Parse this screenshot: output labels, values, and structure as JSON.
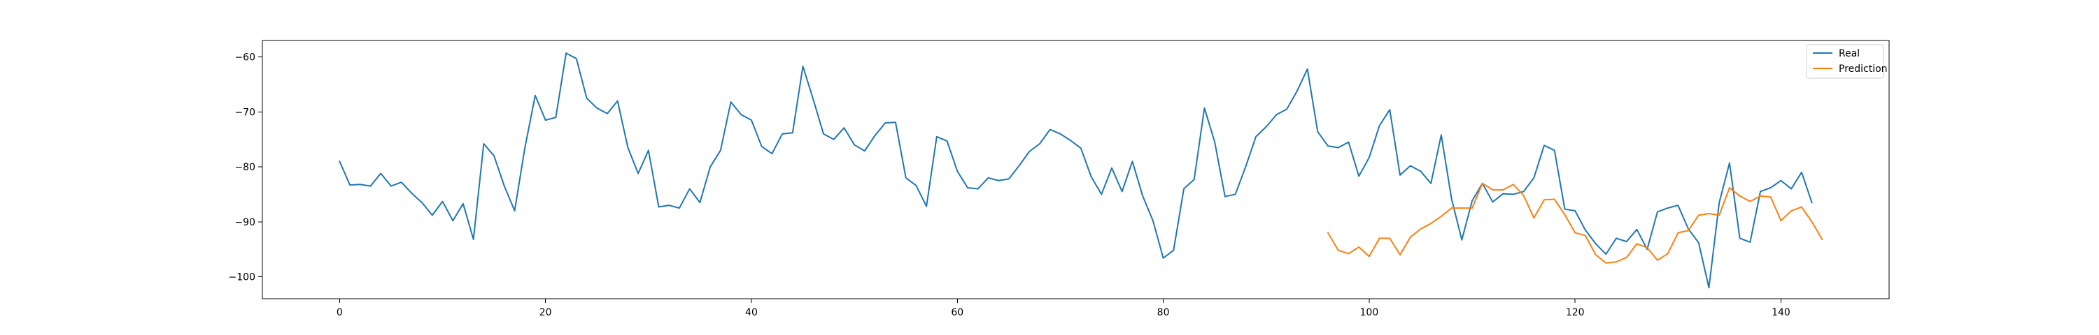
{
  "chart_data": {
    "type": "line",
    "xlim": [
      -7.5,
      150.5
    ],
    "ylim": [
      -104,
      -57
    ],
    "x_ticks": [
      0,
      20,
      40,
      60,
      80,
      100,
      120,
      140
    ],
    "y_ticks": [
      -60,
      -70,
      -80,
      -90,
      -100
    ],
    "grid": false,
    "legend_position": "top-right",
    "series": [
      {
        "name": "Real",
        "color": "#1f77b4",
        "x_start": 0,
        "values": [
          -79,
          -83.3,
          -83.2,
          -83.5,
          -81.2,
          -83.5,
          -82.8,
          -84.8,
          -86.5,
          -88.8,
          -86.3,
          -89.8,
          -86.7,
          -93.2,
          -75.8,
          -78.0,
          -83.5,
          -88.0,
          -76.5,
          -67.0,
          -71.5,
          -71.0,
          -59.3,
          -60.3,
          -67.5,
          -69.3,
          -70.3,
          -68.0,
          -76.5,
          -81.2,
          -77.0,
          -87.3,
          -87.0,
          -87.5,
          -84.0,
          -86.5,
          -80.0,
          -77.0,
          -68.2,
          -70.5,
          -71.5,
          -76.3,
          -77.6,
          -74.0,
          -73.8,
          -61.7,
          -67.7,
          -74.0,
          -75.0,
          -72.9,
          -76.0,
          -77.1,
          -74.3,
          -72.0,
          -71.9,
          -82.0,
          -83.4,
          -87.2,
          -74.5,
          -75.3,
          -80.8,
          -83.8,
          -84.0,
          -82.0,
          -82.5,
          -82.2,
          -79.8,
          -77.2,
          -75.8,
          -73.2,
          -74.0,
          -75.2,
          -76.6,
          -81.8,
          -85.0,
          -80.2,
          -84.5,
          -79.0,
          -85.3,
          -89.8,
          -96.6,
          -95.2,
          -84.0,
          -82.3,
          -69.3,
          -75.5,
          -85.4,
          -85.0,
          -80.0,
          -74.5,
          -72.7,
          -70.5,
          -69.5,
          -66.2,
          -62.2,
          -73.6,
          -76.2,
          -76.5,
          -75.5,
          -81.7,
          -78.3,
          -72.5,
          -69.6,
          -81.5,
          -79.8,
          -80.8,
          -83.0,
          -74.2,
          -85.8,
          -93.3,
          -86.2,
          -83.0,
          -86.4,
          -84.9,
          -85.0,
          -84.5,
          -82.0,
          -76.1,
          -77.0,
          -87.7,
          -88.0,
          -91.5,
          -94.0,
          -95.9,
          -93.0,
          -93.6,
          -91.4,
          -95.0,
          -88.2,
          -87.5,
          -87.0,
          -91.3,
          -93.8,
          -102.0,
          -86.5,
          -79.3,
          -93.0,
          -93.7,
          -84.5,
          -83.8,
          -82.5,
          -84.0,
          -81.0,
          -86.5
        ]
      },
      {
        "name": "Prediction",
        "color": "#ff7f0e",
        "x_start": 96,
        "values": [
          -92.0,
          -95.2,
          -95.8,
          -94.6,
          -96.3,
          -93.0,
          -93.0,
          -96.0,
          -92.8,
          -91.3,
          -90.3,
          -89.0,
          -87.5,
          -87.5,
          -87.5,
          -83.0,
          -84.2,
          -84.2,
          -83.2,
          -85.2,
          -89.3,
          -86.0,
          -85.9,
          -88.7,
          -92.0,
          -92.5,
          -96.0,
          -97.5,
          -97.3,
          -96.5,
          -94.0,
          -94.7,
          -97.0,
          -95.8,
          -92.0,
          -91.6,
          -88.8,
          -88.5,
          -88.8,
          -83.8,
          -85.3,
          -86.3,
          -85.3,
          -85.5,
          -89.8,
          -88.0,
          -87.3,
          -90.0,
          -93.2
        ]
      }
    ]
  }
}
